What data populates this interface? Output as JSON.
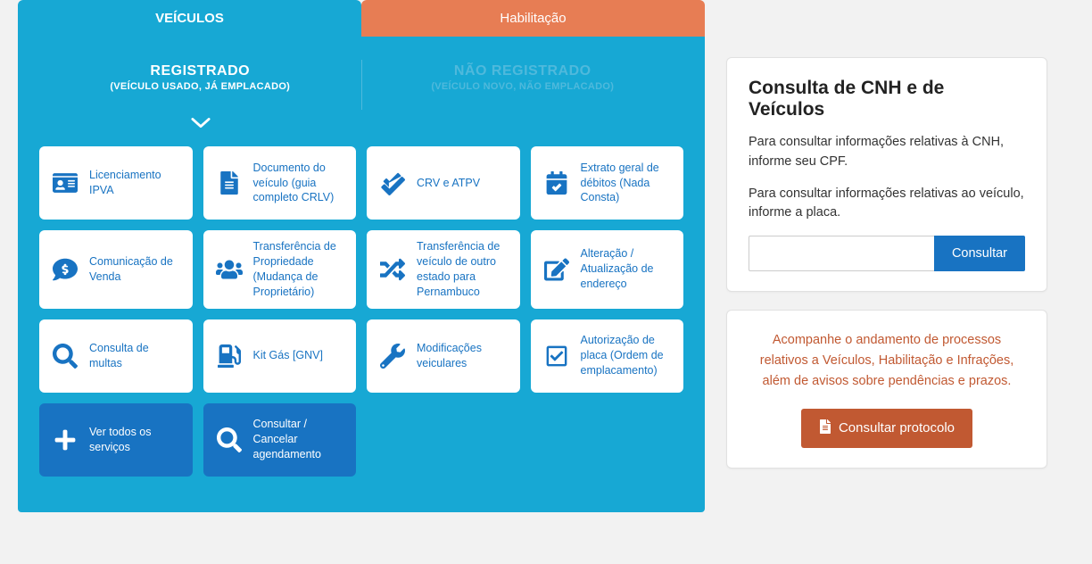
{
  "colors": {
    "primary_cyan": "#17a8d4",
    "primary_orange": "#e77d54",
    "primary_blue": "#1873c2",
    "protocolo_orange": "#c15932",
    "page_bg": "#f2f2f2",
    "card_bg": "#ffffff"
  },
  "tabs": {
    "veiculos": "VEÍCULOS",
    "habilitacao": "Habilitação"
  },
  "subtabs": {
    "registrado": {
      "title": "REGISTRADO",
      "sub": "(VEÍCULO USADO, JÁ EMPLACADO)"
    },
    "nao_registrado": {
      "title": "NÃO REGISTRADO",
      "sub": "(VEÍCULO NOVO, NÃO EMPLACADO)"
    }
  },
  "cards": [
    {
      "label": "Licenciamento IPVA",
      "icon": "id-card"
    },
    {
      "label": "Documento do veículo\n(guia completo CRLV)",
      "icon": "file"
    },
    {
      "label": "CRV e ATPV",
      "icon": "check-double"
    },
    {
      "label": "Extrato geral de débitos (Nada Consta)",
      "icon": "calendar-check"
    },
    {
      "label": "Comunicação de Venda",
      "icon": "comment-dollar"
    },
    {
      "label": "Transferência de Propriedade (Mudança de Proprietário)",
      "icon": "exchange-people"
    },
    {
      "label": "Transferência de veículo de outro estado para Pernambuco",
      "icon": "shuffle"
    },
    {
      "label": "Alteração / Atualização de endereço",
      "icon": "edit"
    },
    {
      "label": "Consulta de multas",
      "icon": "search"
    },
    {
      "label": "Kit Gás [GNV]",
      "icon": "gas-pump"
    },
    {
      "label": "Modificações veiculares",
      "icon": "wrench"
    },
    {
      "label": "Autorização de placa\n(Ordem de emplacamento)",
      "icon": "check-square"
    },
    {
      "label": "Ver todos os serviços",
      "icon": "plus",
      "blue": true
    },
    {
      "label": "Consultar / Cancelar agendamento",
      "icon": "search",
      "blue": true
    }
  ],
  "consulta": {
    "title": "Consulta de CNH e de Veículos",
    "p1": "Para consultar informações relativas à CNH, informe seu CPF.",
    "p2": "Para consultar informações relativas ao veículo, informe a placa.",
    "button": "Consultar"
  },
  "protocolo": {
    "text": "Acompanhe o andamento de processos relativos a Veículos, Habilitação e Infrações, além de avisos sobre pendências e prazos.",
    "button": "Consultar protocolo"
  }
}
